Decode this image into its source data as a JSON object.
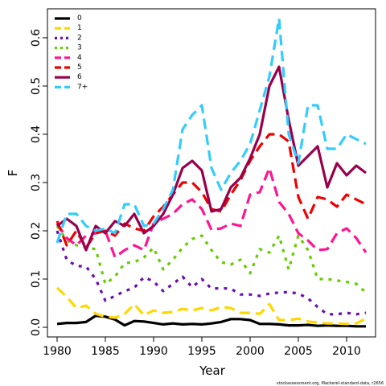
{
  "chart_data": {
    "type": "line",
    "xlabel": "Year",
    "ylabel": "F",
    "xlim": [
      1979,
      2013
    ],
    "ylim": [
      -0.02,
      0.66
    ],
    "xticks": [
      1980,
      1985,
      1990,
      1995,
      2000,
      2005,
      2010
    ],
    "yticks": [
      0.0,
      0.1,
      0.2,
      0.3,
      0.4,
      0.5,
      0.6
    ],
    "ytick_labels": [
      "0.0",
      "0.1",
      "0.2",
      "0.3",
      "0.4",
      "0.5",
      "0.6"
    ],
    "grid": false,
    "legend_position": "top-left",
    "caption": "stockassessment.org, Mackerel-standard-data, r2656",
    "x": [
      1980,
      1981,
      1982,
      1983,
      1984,
      1985,
      1986,
      1987,
      1988,
      1989,
      1990,
      1991,
      1992,
      1993,
      1994,
      1995,
      1996,
      1997,
      1998,
      1999,
      2000,
      2001,
      2002,
      2003,
      2004,
      2005,
      2006,
      2007,
      2008,
      2009,
      2010,
      2011,
      2012
    ],
    "series": [
      {
        "name": "0",
        "color": "#000000",
        "dash": "solid",
        "values": [
          0.007,
          0.009,
          0.009,
          0.011,
          0.024,
          0.022,
          0.016,
          0.004,
          0.013,
          0.012,
          0.009,
          0.006,
          0.008,
          0.006,
          0.007,
          0.006,
          0.008,
          0.011,
          0.017,
          0.017,
          0.015,
          0.007,
          0.007,
          0.006,
          0.004,
          0.004,
          0.005,
          0.003,
          0.004,
          0.003,
          0.003,
          0.002,
          0.002
        ]
      },
      {
        "name": "1",
        "color": "#ffd700",
        "dash": "dashed",
        "values": [
          0.082,
          0.063,
          0.04,
          0.045,
          0.028,
          0.022,
          0.02,
          0.028,
          0.048,
          0.025,
          0.035,
          0.03,
          0.032,
          0.038,
          0.035,
          0.04,
          0.035,
          0.042,
          0.04,
          0.03,
          0.03,
          0.028,
          0.048,
          0.015,
          0.015,
          0.018,
          0.012,
          0.01,
          0.008,
          0.008,
          0.007,
          0.008,
          0.018
        ]
      },
      {
        "name": "2",
        "color": "#6a0dad",
        "dash": "dotted",
        "values": [
          0.2,
          0.14,
          0.127,
          0.126,
          0.1,
          0.055,
          0.065,
          0.075,
          0.082,
          0.104,
          0.095,
          0.075,
          0.09,
          0.105,
          0.083,
          0.1,
          0.08,
          0.081,
          0.08,
          0.068,
          0.068,
          0.065,
          0.07,
          0.072,
          0.073,
          0.07,
          0.06,
          0.042,
          0.027,
          0.027,
          0.03,
          0.027,
          0.03
        ]
      },
      {
        "name": "3",
        "color": "#66cc00",
        "dash": "dotted",
        "values": [
          0.21,
          0.18,
          0.17,
          0.165,
          0.162,
          0.09,
          0.105,
          0.133,
          0.135,
          0.145,
          0.165,
          0.12,
          0.14,
          0.165,
          0.183,
          0.19,
          0.16,
          0.135,
          0.13,
          0.14,
          0.112,
          0.162,
          0.155,
          0.19,
          0.12,
          0.19,
          0.16,
          0.1,
          0.1,
          0.097,
          0.094,
          0.09,
          0.072
        ]
      },
      {
        "name": "4",
        "color": "#ff1493",
        "dash": "dashed",
        "values": [
          0.215,
          0.185,
          0.17,
          0.19,
          0.195,
          0.2,
          0.145,
          0.16,
          0.17,
          0.16,
          0.215,
          0.225,
          0.235,
          0.255,
          0.265,
          0.245,
          0.202,
          0.205,
          0.215,
          0.21,
          0.275,
          0.28,
          0.33,
          0.26,
          0.235,
          0.195,
          0.18,
          0.16,
          0.162,
          0.195,
          0.205,
          0.185,
          0.155
        ]
      },
      {
        "name": "5",
        "color": "#ee0000",
        "dash": "dashed",
        "values": [
          0.22,
          0.17,
          0.2,
          0.165,
          0.195,
          0.2,
          0.19,
          0.215,
          0.205,
          0.2,
          0.23,
          0.25,
          0.275,
          0.3,
          0.3,
          0.28,
          0.245,
          0.24,
          0.275,
          0.305,
          0.345,
          0.375,
          0.4,
          0.4,
          0.385,
          0.27,
          0.225,
          0.27,
          0.265,
          0.25,
          0.275,
          0.265,
          0.255
        ]
      },
      {
        "name": "6",
        "color": "#99004c",
        "dash": "solid",
        "values": [
          0.21,
          0.225,
          0.21,
          0.16,
          0.21,
          0.195,
          0.22,
          0.21,
          0.235,
          0.195,
          0.21,
          0.235,
          0.275,
          0.33,
          0.345,
          0.325,
          0.24,
          0.245,
          0.29,
          0.31,
          0.35,
          0.4,
          0.5,
          0.54,
          0.43,
          0.335,
          0.355,
          0.375,
          0.29,
          0.34,
          0.315,
          0.335,
          0.32
        ]
      },
      {
        "name": "7+",
        "color": "#33ccff",
        "dash": "dashed",
        "values": [
          0.175,
          0.235,
          0.235,
          0.21,
          0.2,
          0.205,
          0.195,
          0.255,
          0.255,
          0.21,
          0.215,
          0.245,
          0.285,
          0.41,
          0.44,
          0.46,
          0.33,
          0.285,
          0.32,
          0.345,
          0.38,
          0.45,
          0.52,
          0.64,
          0.4,
          0.34,
          0.46,
          0.46,
          0.37,
          0.37,
          0.4,
          0.39,
          0.38
        ]
      }
    ]
  }
}
